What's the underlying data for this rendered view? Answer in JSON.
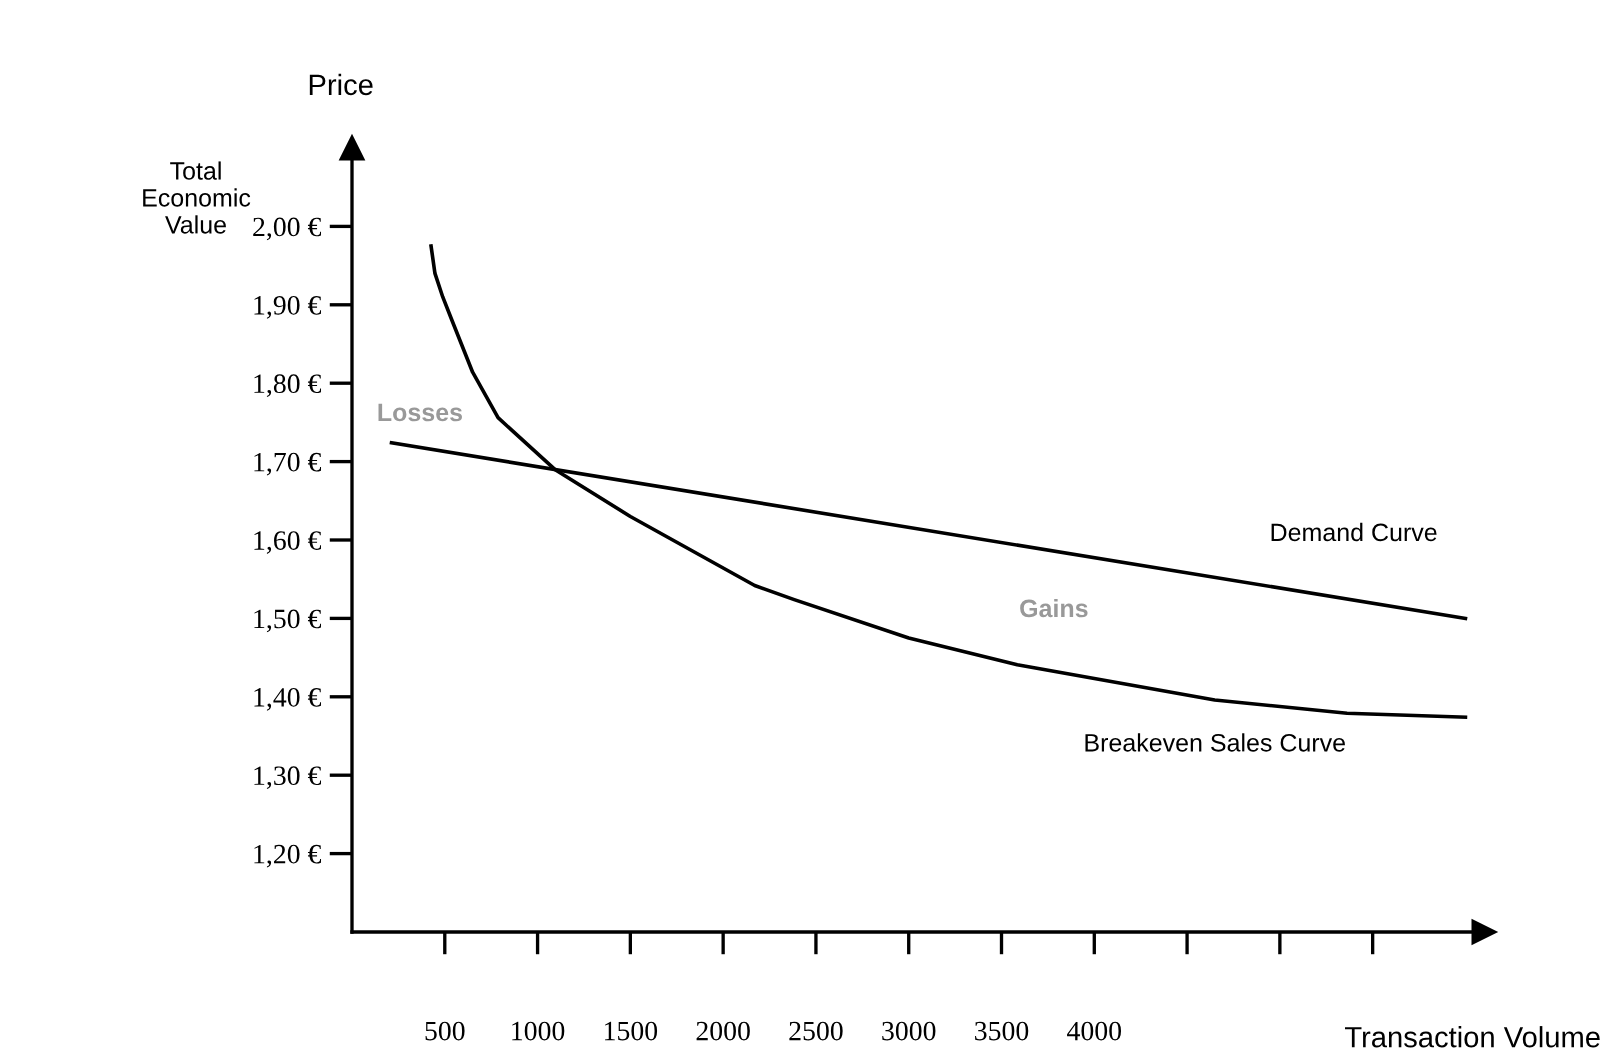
{
  "chart_data": {
    "type": "line",
    "xlabel": "Transaction Volume",
    "ylabel": "Price",
    "x": [
      426,
      447,
      489,
      539,
      650,
      787,
      1093,
      1500,
      2170,
      2383,
      3000,
      3585,
      4649,
      5362,
      6000
    ],
    "series": [
      {
        "name": "Demand Curve",
        "color": "#000000",
        "x": [
          213,
          6000
        ],
        "values": [
          1.724,
          1.5
        ]
      },
      {
        "name": "Breakeven Sales Curve",
        "color": "#000000",
        "values": [
          1.975,
          1.94,
          1.91,
          1.88,
          1.814,
          1.756,
          1.69,
          1.63,
          1.542,
          1.524,
          1.475,
          1.441,
          1.396,
          1.379,
          1.374
        ]
      }
    ],
    "xlim": [
      0,
      6100
    ],
    "ylim": [
      1.1,
      2.1
    ],
    "xticks": [
      500,
      1000,
      1500,
      2000,
      2500,
      3000,
      3500,
      4000,
      {
        "value": 4500,
        "label": null
      },
      {
        "value": 5000,
        "label": null
      },
      {
        "value": 5500,
        "label": null
      }
    ],
    "yticks": [
      {
        "value": 1.2,
        "label": "1,20 €"
      },
      {
        "value": 1.3,
        "label": "1,30 €"
      },
      {
        "value": 1.4,
        "label": "1,40 €"
      },
      {
        "value": 1.5,
        "label": "1,50 €"
      },
      {
        "value": 1.6,
        "label": "1,60 €"
      },
      {
        "value": 1.7,
        "label": "1,70 €"
      },
      {
        "value": 1.8,
        "label": "1,80 €"
      },
      {
        "value": 1.9,
        "label": "1,90 €"
      },
      {
        "value": 2.0,
        "label": "2,00 €"
      }
    ],
    "annotations": [
      "Total Economic Value",
      "Losses",
      "Gains"
    ],
    "grid": false,
    "legend": false,
    "marker": "none",
    "line_style": "solid"
  }
}
